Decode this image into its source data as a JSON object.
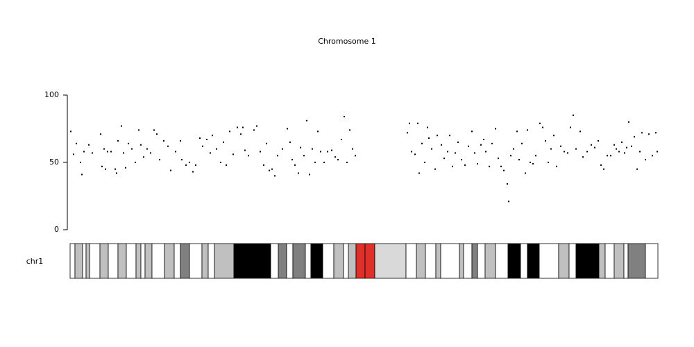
{
  "chart_data": {
    "type": "scatter",
    "title": "Chromosome 1",
    "color": "#000000",
    "xlim": [
      0,
      254.1
    ],
    "ylim": [
      0,
      100
    ],
    "yticks": [
      0,
      50,
      100
    ],
    "x": [
      0.3,
      1.5,
      2.7,
      4.5,
      5.1,
      6,
      8.1,
      9.6,
      13.2,
      13.8,
      14.7,
      15.3,
      16.2,
      17.7,
      19.5,
      20.1,
      20.7,
      22.2,
      23.1,
      24,
      25.2,
      26.7,
      28.2,
      29.7,
      30.6,
      31.8,
      33.3,
      34.8,
      36.3,
      37.5,
      38.7,
      40.5,
      42.3,
      43.5,
      45.6,
      47.7,
      48.3,
      50.1,
      51.6,
      53.1,
      54.3,
      56.1,
      57.3,
      59.1,
      60.6,
      61.5,
      63.3,
      65.1,
      66.3,
      67.5,
      69,
      70.5,
      72.3,
      73.8,
      74.7,
      75.6,
      77.1,
      79.5,
      80.7,
      82.2,
      83.7,
      84.9,
      86.1,
      87.3,
      88.5,
      89.7,
      91.8,
      93.9,
      95.1,
      96,
      97.2,
      98.7,
      99.6,
      101.1,
      102.3,
      103.5,
      104.7,
      105.9,
      107.1,
      108.3,
      109.8,
      111.3,
      113.1,
      114.6,
      115.8,
      117.3,
      118.5,
      119.7,
      120.9,
      122.1,
      123.3,
      145.8,
      146.7,
      147.6,
      149.1,
      150.3,
      150.9,
      152.1,
      153.3,
      154.5,
      155.1,
      156.3,
      157.8,
      158.7,
      160.5,
      161.7,
      163.2,
      164.1,
      165.3,
      166.5,
      167.7,
      169.2,
      170.7,
      172.2,
      173.7,
      174.9,
      176.1,
      177.6,
      178.8,
      179.7,
      181.2,
      182.4,
      183.9,
      185.1,
      186.3,
      187.5,
      189,
      189.6,
      190.5,
      191.7,
      193.2,
      194.1,
      195.3,
      196.8,
      197.7,
      198.9,
      200.1,
      201.3,
      203.1,
      204.3,
      205.5,
      206.7,
      207.9,
      209.1,
      210.3,
      212.1,
      213.6,
      215.1,
      216.3,
      217.5,
      218.7,
      220.5,
      221.7,
      223.5,
      225.3,
      226.8,
      228.3,
      229.5,
      230.7,
      232.2,
      233.7,
      235.2,
      236.1,
      237.3,
      238.5,
      239.7,
      240.6,
      241.5,
      242.7,
      243.9,
      245.1,
      246.3,
      247.2,
      248.7,
      250.2,
      251.7,
      253.2,
      253.8
    ],
    "values": [
      73,
      56,
      64,
      50,
      41,
      58,
      63,
      57,
      71,
      47,
      60,
      45,
      58,
      58,
      45,
      42,
      66,
      77,
      57,
      46,
      64,
      60,
      50,
      74,
      63,
      54,
      60,
      57,
      74,
      71,
      52,
      66,
      62,
      44,
      58,
      66,
      52,
      48,
      50,
      43,
      48,
      68,
      62,
      67,
      57,
      70,
      60,
      50,
      65,
      48,
      73,
      56,
      76,
      71,
      76,
      59,
      55,
      74,
      77,
      58,
      48,
      64,
      44,
      45,
      40,
      55,
      60,
      75,
      65,
      52,
      48,
      42,
      61,
      55,
      81,
      41,
      60,
      50,
      73,
      58,
      50,
      58,
      59,
      54,
      52,
      67,
      84,
      50,
      74,
      60,
      55,
      72,
      79,
      58,
      56,
      79,
      42,
      64,
      50,
      76,
      68,
      60,
      45,
      70,
      63,
      53,
      58,
      70,
      47,
      57,
      65,
      52,
      48,
      62,
      73,
      57,
      49,
      63,
      67,
      58,
      47,
      64,
      75,
      53,
      47,
      44,
      34,
      21,
      55,
      60,
      73,
      52,
      64,
      42,
      74,
      50,
      49,
      55,
      79,
      76,
      66,
      50,
      60,
      70,
      47,
      62,
      58,
      57,
      76,
      85,
      60,
      73,
      54,
      58,
      63,
      61,
      66,
      48,
      45,
      55,
      55,
      63,
      60,
      58,
      65,
      57,
      61,
      80,
      62,
      69,
      45,
      58,
      72,
      52,
      71,
      55,
      72,
      58
    ],
    "ideogram": {
      "label": "chr1",
      "edges": [
        0,
        2.1,
        5.4,
        6.9,
        8.4,
        12.9,
        16.5,
        20.7,
        24.3,
        28.5,
        30.6,
        32.4,
        35.4,
        40.8,
        45,
        47.7,
        51.6,
        57,
        59.7,
        62.4,
        70.8,
        86.7,
        90,
        93.6,
        96.3,
        101.7,
        104.1,
        109.2,
        114,
        118.2,
        120.3,
        123.6,
        127.5,
        131.7,
        145.2,
        149.7,
        153.6,
        158.1,
        160.2,
        168.3,
        170.1,
        173.7,
        176.1,
        179.4,
        183.9,
        189.3,
        194.7,
        197.7,
        202.8,
        211.2,
        215.7,
        218.7,
        228.6,
        231.3,
        235.2,
        239.4,
        241.2,
        248.7,
        254.1
      ],
      "colors": [
        "#ffffff",
        "#c0c0c0",
        "#ffffff",
        "#c0c0c0",
        "#ffffff",
        "#c0c0c0",
        "#ffffff",
        "#c0c0c0",
        "#ffffff",
        "#c0c0c0",
        "#ffffff",
        "#c0c0c0",
        "#ffffff",
        "#c0c0c0",
        "#ffffff",
        "#808080",
        "#ffffff",
        "#c0c0c0",
        "#ffffff",
        "#c0c0c0",
        "#000000",
        "#ffffff",
        "#808080",
        "#ffffff",
        "#808080",
        "#ffffff",
        "#000000",
        "#ffffff",
        "#c0c0c0",
        "#ffffff",
        "#c0c0c0",
        "#e0302a",
        "#e0302a",
        "#d9d9d9",
        "#ffffff",
        "#c0c0c0",
        "#ffffff",
        "#c0c0c0",
        "#ffffff",
        "#c0c0c0",
        "#ffffff",
        "#808080",
        "#ffffff",
        "#c0c0c0",
        "#ffffff",
        "#000000",
        "#ffffff",
        "#000000",
        "#ffffff",
        "#c0c0c0",
        "#ffffff",
        "#000000",
        "#c0c0c0",
        "#ffffff",
        "#c0c0c0",
        "#ffffff",
        "#808080",
        "#ffffff"
      ]
    }
  }
}
